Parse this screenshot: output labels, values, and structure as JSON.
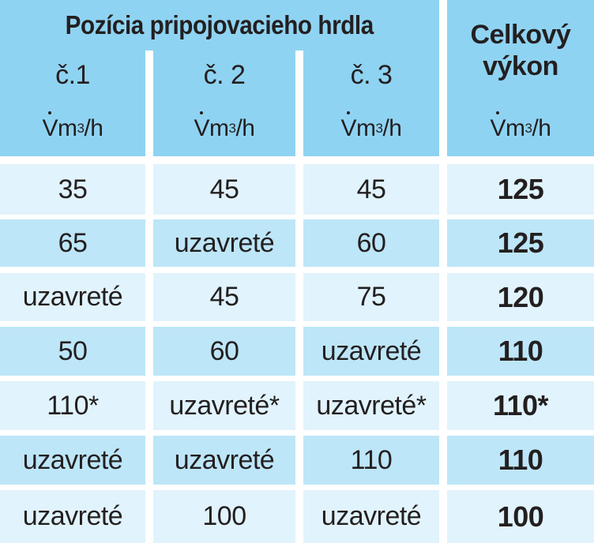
{
  "header": {
    "group_title": "Pozícia pripojovacieho hrdla",
    "total_title_line1": "Celkový",
    "total_title_line2": "výkon",
    "positions": [
      "č.1",
      "č. 2",
      "č. 3"
    ],
    "unit_symbol": "V",
    "unit_text": " m",
    "unit_exp": "3",
    "unit_tail": "/h"
  },
  "rows": [
    {
      "c1": "35",
      "c2": "45",
      "c3": "45",
      "total": "125"
    },
    {
      "c1": "65",
      "c2": "uzavreté",
      "c3": "60",
      "total": "125"
    },
    {
      "c1": "uzavreté",
      "c2": "45",
      "c3": "75",
      "total": "120"
    },
    {
      "c1": "50",
      "c2": "60",
      "c3": "uzavreté",
      "total": "110"
    },
    {
      "c1": "110*",
      "c2": "uzavreté*",
      "c3": "uzavreté*",
      "total": "110*"
    },
    {
      "c1": "uzavreté",
      "c2": "uzavreté",
      "c3": "110",
      "total": "110"
    },
    {
      "c1": "uzavreté",
      "c2": "100",
      "c3": "uzavreté",
      "total": "100"
    }
  ],
  "colors": {
    "header": "#8fd3f2",
    "row_light": "#e1f3fc",
    "row_dark": "#bde6f8",
    "text": "#231f20"
  }
}
